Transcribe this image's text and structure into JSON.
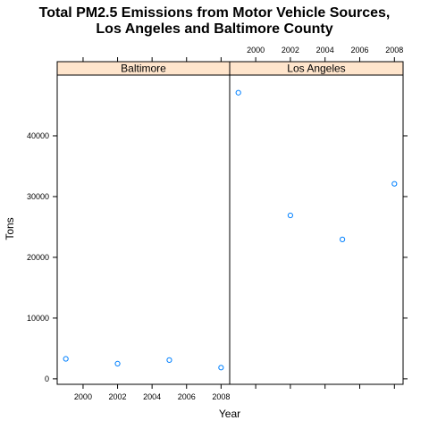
{
  "chart_data": {
    "type": "scatter",
    "title_lines": [
      "Total PM2.5 Emissions from Motor Vehicle Sources,",
      "Los Angeles and Baltimore County"
    ],
    "xlabel": "Year",
    "ylabel": "Tons",
    "xlim": [
      1998.5,
      2008.5
    ],
    "ylim": [
      -900,
      50000
    ],
    "x_ticks": [
      2000,
      2002,
      2004,
      2006,
      2008
    ],
    "y_ticks": [
      0,
      10000,
      20000,
      30000,
      40000
    ],
    "grid": false,
    "point_color": "#0080ff",
    "strip_color": "#ffe5cc",
    "panels": [
      {
        "name": "Baltimore",
        "x": [
          1999,
          2002,
          2005,
          2008
        ],
        "y": [
          3290,
          2500,
          3090,
          1850
        ]
      },
      {
        "name": "Los Angeles",
        "x": [
          1999,
          2002,
          2005,
          2008
        ],
        "y": [
          47100,
          26900,
          22950,
          32100
        ]
      }
    ]
  }
}
